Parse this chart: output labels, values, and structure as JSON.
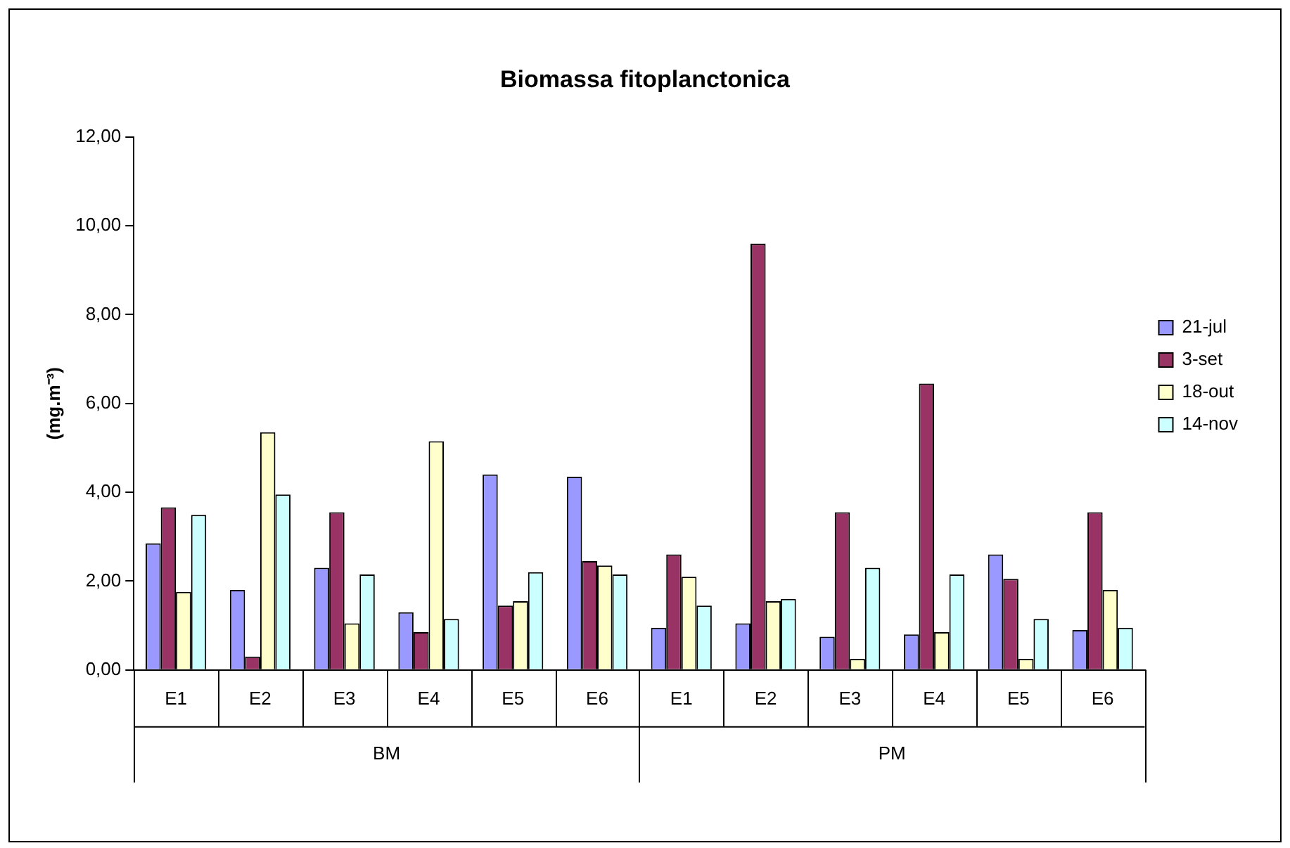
{
  "chart_data": {
    "type": "bar",
    "title": "Biomassa fitoplanctonica",
    "ylabel": "(mg.m⁻³)",
    "categories": [
      "E1",
      "E2",
      "E3",
      "E4",
      "E5",
      "E6",
      "E1",
      "E2",
      "E3",
      "E4",
      "E5",
      "E6"
    ],
    "series": [
      {
        "name": "21-jul",
        "color": "#9999ff",
        "values": [
          2.85,
          1.8,
          2.3,
          1.3,
          4.4,
          4.35,
          0.95,
          1.05,
          0.75,
          0.8,
          2.6,
          0.9
        ]
      },
      {
        "name": "3-set",
        "color": "#993366",
        "values": [
          3.66,
          0.3,
          3.55,
          0.85,
          1.45,
          2.45,
          2.6,
          9.6,
          3.55,
          6.45,
          2.05,
          3.55
        ]
      },
      {
        "name": "18-out",
        "color": "#ffffcc",
        "values": [
          1.76,
          5.35,
          1.05,
          5.15,
          1.55,
          2.35,
          2.1,
          1.55,
          0.25,
          0.85,
          0.25,
          1.8
        ]
      },
      {
        "name": "14-nov",
        "color": "#ccffff",
        "values": [
          3.49,
          3.95,
          2.15,
          1.15,
          2.2,
          2.15,
          1.45,
          1.6,
          2.3,
          2.15,
          1.15,
          0.95
        ]
      }
    ],
    "ylim": [
      0,
      12
    ],
    "yticks": [
      {
        "value": 0,
        "label": "0,00"
      },
      {
        "value": 2,
        "label": "2,00"
      },
      {
        "value": 4,
        "label": "4,00"
      },
      {
        "value": 6,
        "label": "6,00"
      },
      {
        "value": 8,
        "label": "8,00"
      },
      {
        "value": 10,
        "label": "10,00"
      },
      {
        "value": 12,
        "label": "12,00"
      }
    ],
    "annotations": [
      "BM",
      "PM"
    ],
    "grid": false,
    "legend": "right"
  }
}
